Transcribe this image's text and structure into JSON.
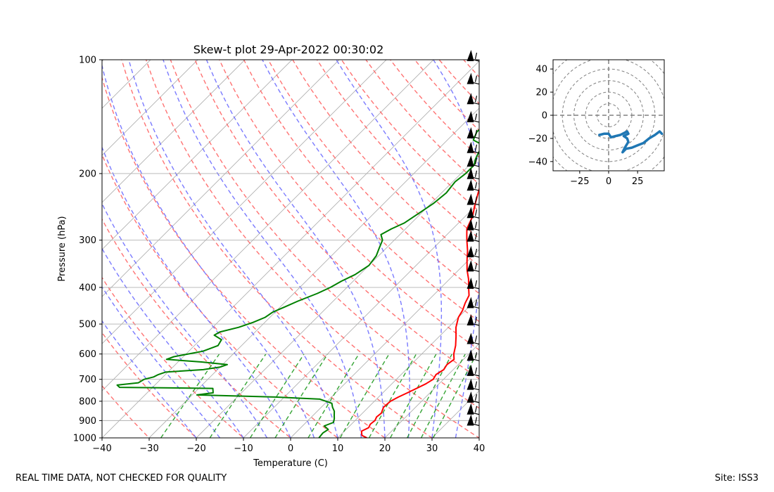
{
  "chart_data": [
    {
      "type": "skew-t",
      "title": "Skew-t plot 29-Apr-2022 00:30:02",
      "xlabel": "Temperature (C)",
      "ylabel": "Pressure (hPa)",
      "xlim": [
        -40,
        40
      ],
      "ylim": [
        1000,
        100
      ],
      "y_scale": "log",
      "x_ticks": [
        -40,
        -30,
        -20,
        -10,
        0,
        10,
        20,
        30,
        40
      ],
      "x_tick_labels": [
        "−40",
        "−30",
        "−20",
        "−10",
        "0",
        "10",
        "20",
        "30",
        "40"
      ],
      "y_ticks": [
        1000,
        900,
        800,
        700,
        600,
        500,
        400,
        300,
        200,
        100
      ],
      "y_tick_labels": [
        "1000",
        "900",
        "800",
        "700",
        "600",
        "500",
        "400",
        "300",
        "200",
        "100"
      ],
      "grid": true,
      "series": [
        {
          "kind": "temperature",
          "color": "#ff0000",
          "points": [
            [
              1000,
              16.2
            ],
            [
              985,
              14.6
            ],
            [
              960,
              13.6
            ],
            [
              940,
              14.4
            ],
            [
              920,
              14.0
            ],
            [
              900,
              14.2
            ],
            [
              880,
              13.8
            ],
            [
              860,
              14.0
            ],
            [
              830,
              13.2
            ],
            [
              800,
              13.4
            ],
            [
              780,
              14.2
            ],
            [
              760,
              15.2
            ],
            [
              740,
              16.2
            ],
            [
              720,
              17.2
            ],
            [
              700,
              17.8
            ],
            [
              680,
              17.4
            ],
            [
              660,
              18.0
            ],
            [
              640,
              17.6
            ],
            [
              620,
              18.0
            ],
            [
              600,
              16.8
            ],
            [
              570,
              15.4
            ],
            [
              540,
              13.6
            ],
            [
              510,
              11.6
            ],
            [
              480,
              10.0
            ],
            [
              460,
              9.4
            ],
            [
              440,
              8.4
            ],
            [
              420,
              7.6
            ],
            [
              400,
              5.8
            ],
            [
              380,
              4.0
            ],
            [
              360,
              1.8
            ],
            [
              340,
              -0.2
            ],
            [
              320,
              -2.2
            ],
            [
              300,
              -4.6
            ],
            [
              290,
              -5.8
            ],
            [
              280,
              -7.0
            ],
            [
              260,
              -8.4
            ],
            [
              240,
              -10.6
            ],
            [
              220,
              -12.8
            ],
            [
              205,
              -14.4
            ],
            [
              195,
              -15.6
            ],
            [
              185,
              -15.8
            ],
            [
              180,
              -14.6
            ],
            [
              170,
              -12.4
            ],
            [
              160,
              -10.0
            ],
            [
              150,
              -10.6
            ],
            [
              145,
              -10.2
            ],
            [
              140,
              -8.6
            ],
            [
              130,
              -7.6
            ],
            [
              120,
              -6.2
            ],
            [
              115,
              -5.6
            ],
            [
              110,
              -4.8
            ],
            [
              105,
              -3.8
            ],
            [
              100,
              -3.6
            ]
          ]
        },
        {
          "kind": "dewpoint",
          "color": "#008000",
          "points": [
            [
              1000,
              6.0
            ],
            [
              970,
              5.8
            ],
            [
              950,
              6.2
            ],
            [
              930,
              4.6
            ],
            [
              910,
              5.8
            ],
            [
              890,
              5.2
            ],
            [
              870,
              4.4
            ],
            [
              850,
              3.6
            ],
            [
              830,
              2.4
            ],
            [
              810,
              1.4
            ],
            [
              790,
              -2.0
            ],
            [
              780,
              -12.0
            ],
            [
              770,
              -29.0
            ],
            [
              760,
              -26.0
            ],
            [
              740,
              -27.0
            ],
            [
              735,
              -47.0
            ],
            [
              725,
              -48.0
            ],
            [
              715,
              -44.0
            ],
            [
              700,
              -43.5
            ],
            [
              690,
              -42.0
            ],
            [
              680,
              -41.5
            ],
            [
              670,
              -40.5
            ],
            [
              660,
              -33.0
            ],
            [
              650,
              -30.0
            ],
            [
              640,
              -29.0
            ],
            [
              630,
              -35.0
            ],
            [
              620,
              -43.0
            ],
            [
              610,
              -42.0
            ],
            [
              590,
              -37.0
            ],
            [
              570,
              -35.0
            ],
            [
              550,
              -35.5
            ],
            [
              535,
              -38.0
            ],
            [
              525,
              -37.5
            ],
            [
              510,
              -34.5
            ],
            [
              495,
              -32.5
            ],
            [
              480,
              -31.0
            ],
            [
              465,
              -30.5
            ],
            [
              450,
              -29.0
            ],
            [
              435,
              -27.5
            ],
            [
              415,
              -25.0
            ],
            [
              400,
              -23.5
            ],
            [
              385,
              -22.5
            ],
            [
              370,
              -21.0
            ],
            [
              350,
              -20.0
            ],
            [
              330,
              -20.5
            ],
            [
              315,
              -21.5
            ],
            [
              300,
              -22.5
            ],
            [
              290,
              -24.0
            ],
            [
              280,
              -23.0
            ],
            [
              270,
              -21.5
            ],
            [
              255,
              -20.5
            ],
            [
              240,
              -19.5
            ],
            [
              225,
              -19.0
            ],
            [
              210,
              -19.5
            ],
            [
              200,
              -19.0
            ],
            [
              190,
              -19.0
            ],
            [
              183,
              -20.0
            ],
            [
              178,
              -20.5
            ],
            [
              173,
              -21.0
            ],
            [
              168,
              -21.5
            ],
            [
              163,
              -24.5
            ],
            [
              155,
              -25.5
            ],
            [
              148,
              -25.2
            ],
            [
              140,
              -25.5
            ],
            [
              132,
              -24.5
            ],
            [
              125,
              -23.0
            ],
            [
              118,
              -21.5
            ],
            [
              110,
              -20.0
            ],
            [
              104,
              -19.0
            ],
            [
              100,
              -17.5
            ]
          ]
        }
      ],
      "reference_lines": {
        "isotherms": "grey solid",
        "dry_adiabats": "red dashed",
        "moist_adiabats": "blue dashed",
        "mixing_ratio_lines": "green dashed"
      },
      "wind_barbs": {
        "color": "#000000",
        "x_temperature": 35,
        "pressures": [
          100,
          115,
          130,
          145,
          160,
          175,
          190,
          205,
          220,
          240,
          260,
          280,
          300,
          330,
          360,
          400,
          450,
          500,
          560,
          620,
          680,
          740,
          800,
          860,
          920
        ]
      }
    },
    {
      "type": "hodograph",
      "xlim": [
        -48,
        48
      ],
      "ylim": [
        -48,
        48
      ],
      "x_ticks": [
        -25,
        0,
        25
      ],
      "x_tick_labels": [
        "−25",
        "0",
        "25"
      ],
      "y_ticks": [
        -40,
        -20,
        0,
        20,
        40
      ],
      "y_tick_labels": [
        "−40",
        "−20",
        "0",
        "20",
        "40"
      ],
      "rings": [
        10,
        20,
        30,
        40,
        50,
        60
      ],
      "color": "#1f77b4",
      "points": [
        [
          -8,
          -17
        ],
        [
          -4,
          -16
        ],
        [
          0,
          -16
        ],
        [
          2,
          -19
        ],
        [
          6,
          -18
        ],
        [
          10,
          -17
        ],
        [
          14,
          -15
        ],
        [
          16,
          -14
        ],
        [
          17,
          -16
        ],
        [
          13,
          -18
        ],
        [
          16,
          -20
        ],
        [
          17,
          -23
        ],
        [
          14,
          -28
        ],
        [
          12,
          -32
        ],
        [
          15,
          -29
        ],
        [
          20,
          -28
        ],
        [
          25,
          -26
        ],
        [
          30,
          -24
        ],
        [
          35,
          -20
        ],
        [
          40,
          -17
        ],
        [
          44,
          -14
        ],
        [
          46,
          -16
        ]
      ]
    }
  ],
  "footer": {
    "left_note": "REAL TIME DATA, NOT CHECKED FOR QUALITY",
    "site": "Site: ISS3"
  }
}
